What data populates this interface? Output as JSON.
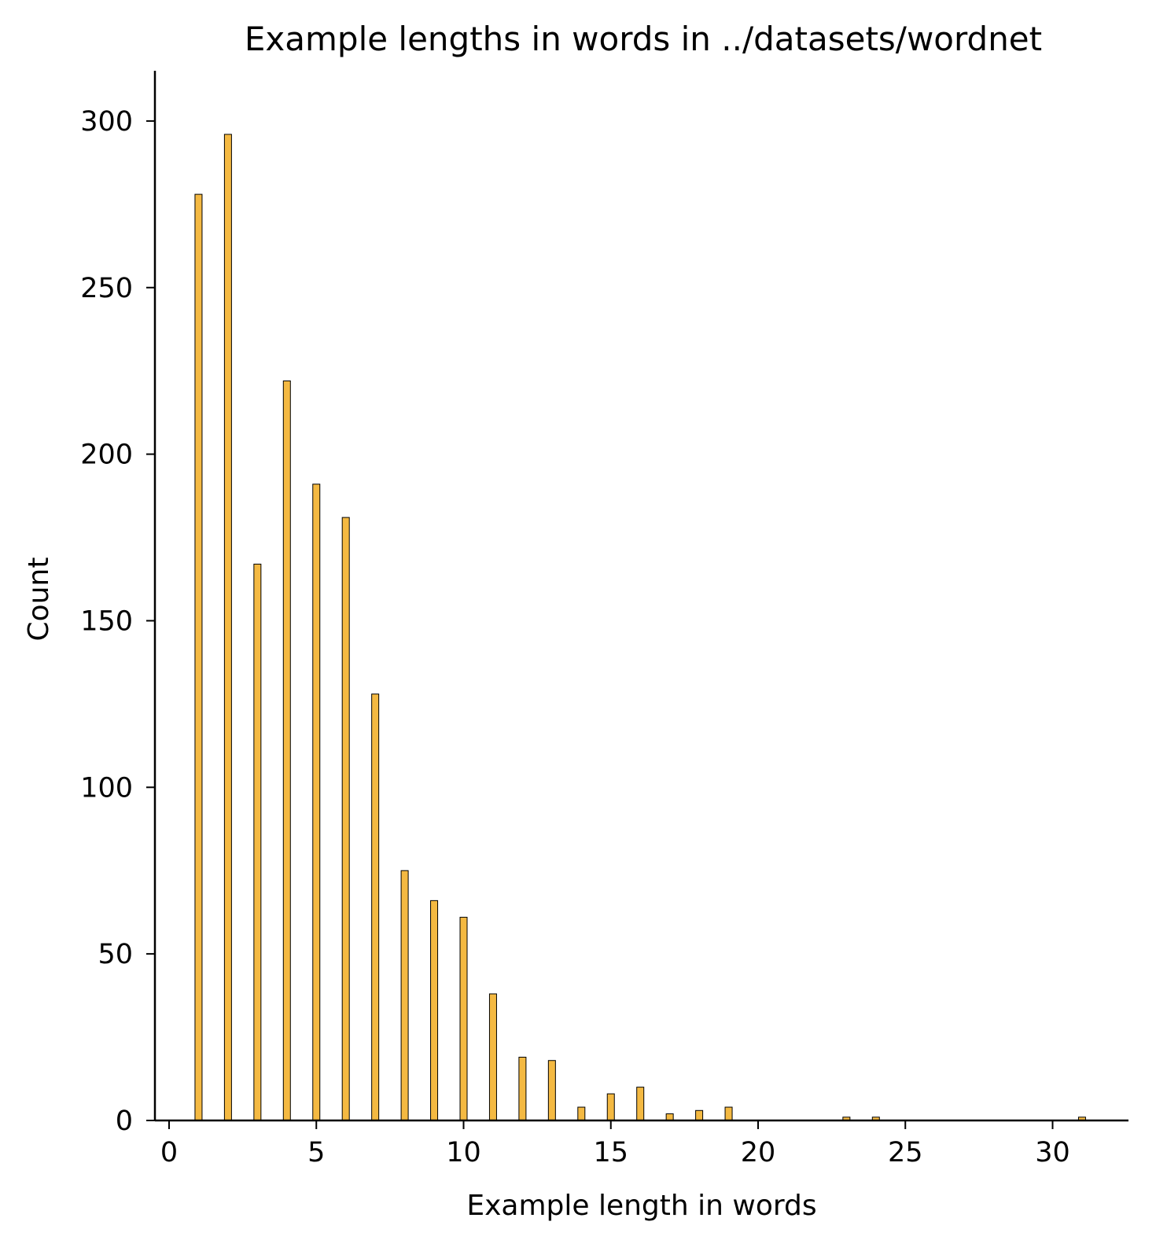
{
  "chart_data": {
    "type": "bar",
    "title": "Example lengths in words in ../datasets/wordnet",
    "xlabel": "Example length in words",
    "ylabel": "Count",
    "xlim": [
      -0.5,
      32.5
    ],
    "ylim": [
      0,
      311
    ],
    "xticks": [
      0,
      5,
      10,
      15,
      20,
      25,
      30
    ],
    "yticks": [
      0,
      50,
      100,
      150,
      200,
      250,
      300
    ],
    "grid": false,
    "bar_color": "#f4b942",
    "edge_color": "#000000",
    "x": [
      1,
      2,
      3,
      4,
      5,
      6,
      7,
      8,
      9,
      10,
      11,
      12,
      13,
      14,
      15,
      16,
      17,
      18,
      19,
      23,
      24,
      31
    ],
    "values": [
      278,
      296,
      167,
      222,
      191,
      181,
      128,
      75,
      66,
      61,
      38,
      19,
      18,
      4,
      8,
      10,
      2,
      3,
      4,
      1,
      1,
      1
    ]
  }
}
